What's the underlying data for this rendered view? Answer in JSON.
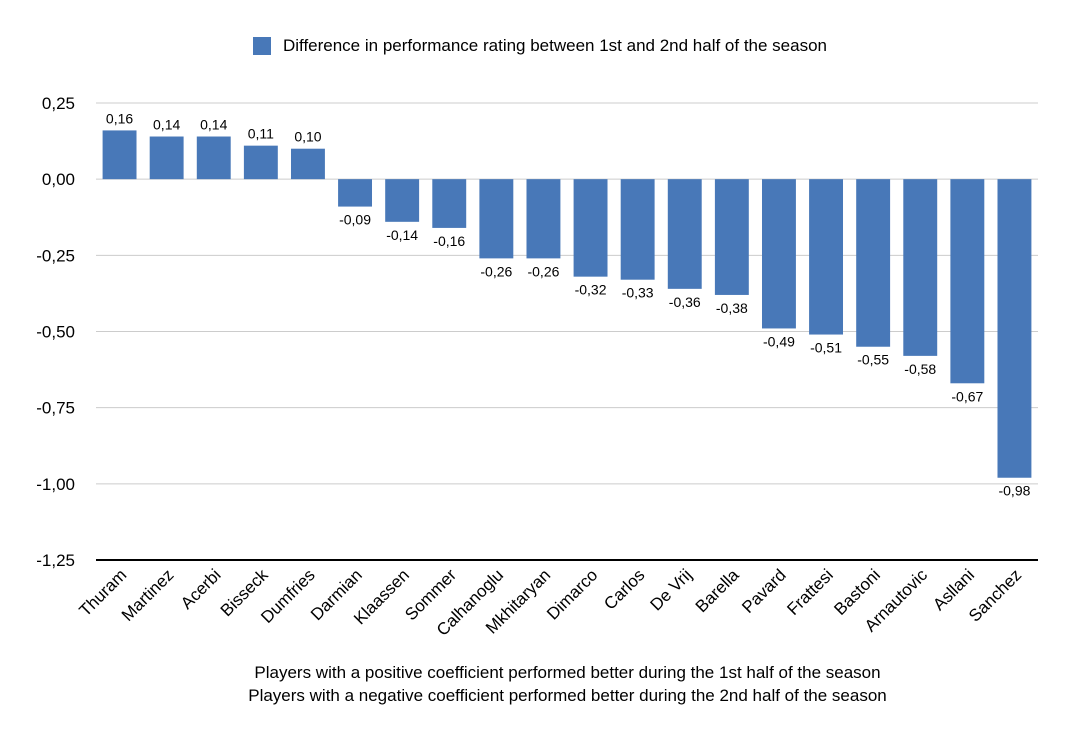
{
  "chart_data": {
    "type": "bar",
    "legend": {
      "label": "Difference in performance rating between 1st and 2nd half of the season",
      "position": "top-center"
    },
    "categories": [
      "Thuram",
      "Martinez",
      "Acerbi",
      "Bisseck",
      "Dumfries",
      "Darmian",
      "Klaassen",
      "Sommer",
      "Calhanoglu",
      "Mkhitaryan",
      "Dimarco",
      "Carlos",
      "De Vrij",
      "Barella",
      "Pavard",
      "Frattesi",
      "Bastoni",
      "Arnautovic",
      "Asllani",
      "Sanchez"
    ],
    "series": [
      {
        "name": "Difference in performance rating between 1st and 2nd half of the season",
        "values": [
          0.16,
          0.14,
          0.14,
          0.11,
          0.1,
          -0.09,
          -0.14,
          -0.16,
          -0.26,
          -0.26,
          -0.32,
          -0.33,
          -0.36,
          -0.38,
          -0.49,
          -0.51,
          -0.55,
          -0.58,
          -0.67,
          -0.98
        ],
        "data_labels": [
          "0,16",
          "0,14",
          "0,14",
          "0,11",
          "0,10",
          "-0,09",
          "-0,14",
          "-0,16",
          "-0,26",
          "-0,26",
          "-0,32",
          "-0,33",
          "-0,36",
          "-0,38",
          "-0,49",
          "-0,51",
          "-0,55",
          "-0,58",
          "-0,67",
          "-0,98"
        ]
      }
    ],
    "ylim": [
      -1.25,
      0.25
    ],
    "yticks": [
      0.25,
      0,
      -0.25,
      -0.5,
      -0.75,
      -1,
      -1.25
    ],
    "ytick_labels": [
      "0,25",
      "0,00",
      "-0,25",
      "-0,50",
      "-0,75",
      "-1,00",
      "-1,25"
    ],
    "grid": true,
    "bar_color": "#4878b8",
    "grid_color": "#cccccc",
    "notes": [
      "Players with a positive coefficient performed better during the 1st half of the season",
      "Players with a negative coefficient performed better during the 2nd half of the season"
    ]
  }
}
